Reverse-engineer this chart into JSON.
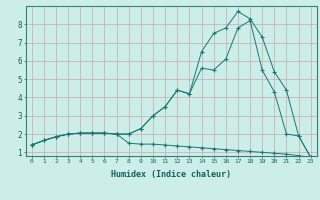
{
  "xlabel": "Humidex (Indice chaleur)",
  "bg_color": "#cceee8",
  "line_color": "#1a7870",
  "grid_color": "#c9a8b0",
  "xlim": [
    -0.5,
    23.5
  ],
  "ylim": [
    0.8,
    9.0
  ],
  "xticks": [
    0,
    1,
    2,
    3,
    4,
    5,
    6,
    7,
    8,
    9,
    10,
    11,
    12,
    13,
    14,
    15,
    16,
    17,
    18,
    19,
    20,
    21,
    22,
    23
  ],
  "yticks": [
    1,
    2,
    3,
    4,
    5,
    6,
    7,
    8
  ],
  "line1_x": [
    0,
    1,
    2,
    3,
    4,
    5,
    6,
    7,
    8,
    9,
    10,
    11,
    12,
    13,
    14,
    15,
    16,
    17,
    18,
    19,
    20,
    21,
    22,
    23
  ],
  "line1_y": [
    1.4,
    1.65,
    1.85,
    2.0,
    2.05,
    2.05,
    2.05,
    2.0,
    1.5,
    1.45,
    1.45,
    1.4,
    1.35,
    1.3,
    1.25,
    1.2,
    1.15,
    1.1,
    1.05,
    1.0,
    0.95,
    0.9,
    0.82,
    0.72
  ],
  "line2_x": [
    0,
    1,
    2,
    3,
    4,
    5,
    6,
    7,
    8,
    9,
    10,
    11,
    12,
    13,
    14,
    15,
    16,
    17,
    18,
    19,
    20,
    21,
    22,
    23
  ],
  "line2_y": [
    1.4,
    1.65,
    1.85,
    2.0,
    2.05,
    2.05,
    2.05,
    2.0,
    2.0,
    2.3,
    3.0,
    3.5,
    4.4,
    4.2,
    5.6,
    5.5,
    6.1,
    7.8,
    8.2,
    5.5,
    4.3,
    2.0,
    1.9,
    0.72
  ],
  "line3_x": [
    0,
    1,
    2,
    3,
    4,
    5,
    6,
    7,
    8,
    9,
    10,
    11,
    12,
    13,
    14,
    15,
    16,
    17,
    18,
    19,
    20,
    21,
    22,
    23
  ],
  "line3_y": [
    1.4,
    1.65,
    1.85,
    2.0,
    2.05,
    2.05,
    2.05,
    2.0,
    2.0,
    2.3,
    3.0,
    3.5,
    4.4,
    4.2,
    6.5,
    7.5,
    7.8,
    8.7,
    8.3,
    7.3,
    5.4,
    4.4,
    1.9,
    0.72
  ]
}
